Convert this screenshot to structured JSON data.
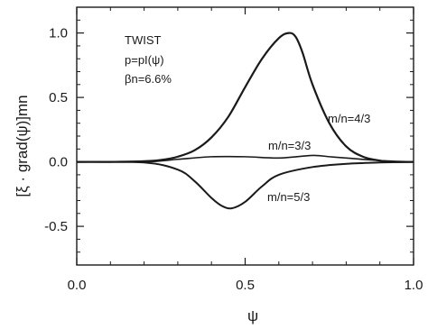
{
  "chart_data": {
    "type": "line",
    "title": "",
    "xlabel": "ψ",
    "ylabel": "[ξ · grad(ψ)]mn",
    "xlim": [
      0.0,
      1.0
    ],
    "ylim": [
      -0.8,
      1.2
    ],
    "xticks": [
      0.0,
      0.5,
      1.0
    ],
    "xtick_labels": [
      "0.0",
      "0.5",
      "1.0"
    ],
    "yticks": [
      -0.5,
      0.0,
      0.5,
      1.0
    ],
    "ytick_labels": [
      "-0.5",
      "0.0",
      "0.5",
      "1.0"
    ],
    "grid": false,
    "legend": "none",
    "annotation": {
      "lines": [
        "TWIST",
        "p=pI(ψ)",
        "βn=6.6%"
      ]
    },
    "series": [
      {
        "name": "m/n=4/3",
        "x": [
          0.0,
          0.1,
          0.2,
          0.25,
          0.3,
          0.35,
          0.4,
          0.45,
          0.5,
          0.55,
          0.6,
          0.63,
          0.65,
          0.67,
          0.7,
          0.75,
          0.8,
          0.85,
          0.9,
          0.95,
          1.0
        ],
        "y": [
          0.0,
          0.0,
          0.005,
          0.015,
          0.04,
          0.09,
          0.19,
          0.35,
          0.58,
          0.8,
          0.96,
          1.0,
          0.97,
          0.85,
          0.6,
          0.3,
          0.12,
          0.04,
          0.01,
          0.0,
          0.0
        ]
      },
      {
        "name": "m/n=3/3",
        "x": [
          0.0,
          0.2,
          0.3,
          0.4,
          0.5,
          0.6,
          0.7,
          0.75,
          0.8,
          0.9,
          1.0
        ],
        "y": [
          0.0,
          0.0,
          0.02,
          0.04,
          0.04,
          0.03,
          0.05,
          0.04,
          0.03,
          0.01,
          0.0
        ]
      },
      {
        "name": "m/n=5/3",
        "x": [
          0.0,
          0.2,
          0.3,
          0.35,
          0.4,
          0.43,
          0.46,
          0.5,
          0.55,
          0.6,
          0.7,
          0.8,
          0.9,
          1.0
        ],
        "y": [
          0.0,
          -0.005,
          -0.06,
          -0.15,
          -0.28,
          -0.34,
          -0.36,
          -0.31,
          -0.19,
          -0.1,
          -0.04,
          -0.015,
          -0.005,
          0.0
        ]
      }
    ]
  }
}
